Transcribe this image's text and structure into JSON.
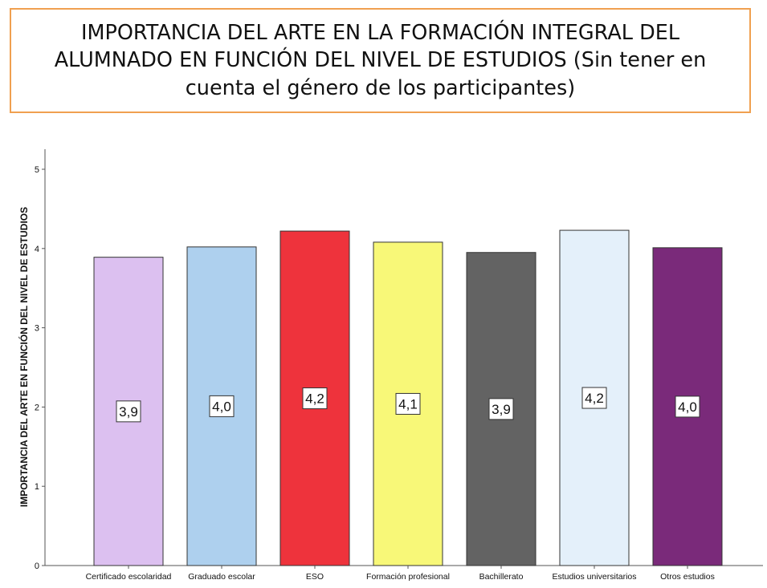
{
  "header": {
    "title": "IMPORTANCIA DEL ARTE EN LA FORMACIÓN INTEGRAL DEL ALUMNADO EN FUNCIÓN DEL NIVEL DE ESTUDIOS (Sin tener en cuenta el género de los participantes)"
  },
  "chart_data": {
    "type": "bar",
    "title": "",
    "xlabel": "",
    "ylabel": "IMPORTANCIA DEL ARTE EN FUNCIÓN DEL NIVEL DE ESTUDIOS",
    "ylim": [
      0,
      5
    ],
    "yticks": [
      0,
      1,
      2,
      3,
      4,
      5
    ],
    "grid": false,
    "categories": [
      "Certificado escolaridad",
      "Graduado escolar",
      "ESO",
      "Formación profesional",
      "Bachillerato",
      "Estudios universitarios",
      "Otros estudios"
    ],
    "values": [
      3.89,
      4.02,
      4.22,
      4.08,
      3.95,
      4.23,
      4.01
    ],
    "data_labels": [
      "3,9",
      "4,0",
      "4,2",
      "4,1",
      "3,9",
      "4,2",
      "4,0"
    ],
    "colors": [
      "#dcc0f0",
      "#aed0ee",
      "#ee333c",
      "#f8f878",
      "#636363",
      "#e4f0fa",
      "#7a2a7a"
    ]
  }
}
